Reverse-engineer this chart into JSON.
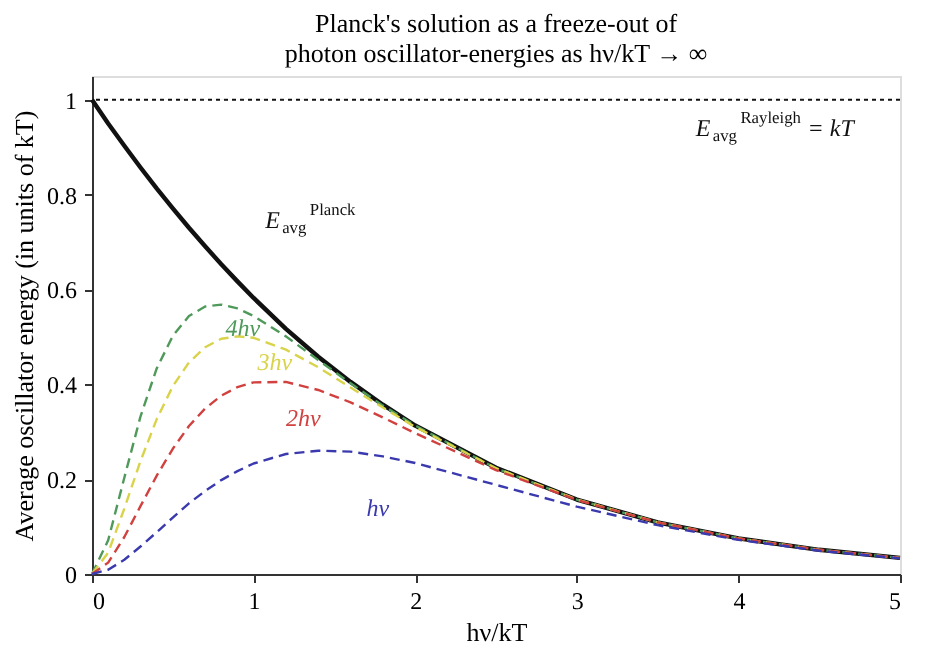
{
  "chart_data": {
    "type": "line",
    "title": [
      "Planck's solution as a freeze-out of",
      "photon oscillator-energies as hν/kT → ∞"
    ],
    "xlabel": "hν/kT",
    "ylabel": "Average oscillator energy (in units of kT)",
    "x": [
      0,
      0.1,
      0.2,
      0.3,
      0.4,
      0.5,
      0.6,
      0.7,
      0.8,
      0.9,
      1.0,
      1.2,
      1.4,
      1.6,
      1.8,
      2.0,
      2.5,
      3,
      3.5,
      4,
      4.5,
      5
    ],
    "series": [
      {
        "name": "E$_{avg}$$^{Planck}$",
        "color": "#111111",
        "line_style": "solid",
        "values": [
          1,
          0.95,
          0.903,
          0.857,
          0.813,
          0.771,
          0.73,
          0.691,
          0.653,
          0.617,
          0.582,
          0.517,
          0.458,
          0.405,
          0.357,
          0.313,
          0.224,
          0.157,
          0.109,
          0.075,
          0.051,
          0.034
        ]
      },
      {
        "name": "4hν",
        "color": "#4f9a5a",
        "line_style": "dashed",
        "values": [
          0,
          0.071,
          0.203,
          0.332,
          0.433,
          0.502,
          0.544,
          0.564,
          0.568,
          0.56,
          0.544,
          0.501,
          0.451,
          0.402,
          0.355,
          0.313,
          0.223,
          0.157,
          0.109,
          0.075,
          0.051,
          0.034
        ]
      },
      {
        "name": "3hν",
        "color": "#d9d34a",
        "line_style": "dashed",
        "values": [
          0,
          0.045,
          0.138,
          0.238,
          0.326,
          0.396,
          0.446,
          0.478,
          0.496,
          0.501,
          0.498,
          0.473,
          0.436,
          0.393,
          0.351,
          0.31,
          0.223,
          0.157,
          0.109,
          0.075,
          0.051,
          0.034
        ]
      },
      {
        "name": "2hν",
        "color": "#d0413f",
        "line_style": "dashed",
        "values": [
          0,
          0.024,
          0.078,
          0.143,
          0.207,
          0.264,
          0.312,
          0.349,
          0.376,
          0.394,
          0.404,
          0.405,
          0.388,
          0.362,
          0.33,
          0.297,
          0.219,
          0.156,
          0.109,
          0.075,
          0.051,
          0.034
        ]
      },
      {
        "name": "hν",
        "color": "#3a3aae",
        "line_style": "dashed",
        "values": [
          0,
          0.009,
          0.03,
          0.058,
          0.088,
          0.119,
          0.149,
          0.175,
          0.198,
          0.217,
          0.233,
          0.253,
          0.26,
          0.258,
          0.248,
          0.234,
          0.188,
          0.142,
          0.103,
          0.072,
          0.049,
          0.033
        ]
      }
    ],
    "xlim": [
      0,
      5
    ],
    "xticks": [
      0,
      1,
      2,
      3,
      4,
      5
    ],
    "ylim": [
      0,
      1.05
    ],
    "yticks": [
      0,
      0.2,
      0.4,
      0.6,
      0.8,
      1
    ],
    "ref_lines": [
      {
        "axis": "y",
        "value": 1,
        "label": "E$_{avg}$$^{Rayleigh}$ = kT",
        "color": "#111111",
        "line_style": "dotted"
      }
    ],
    "grid": false,
    "legend": false,
    "marker": "none"
  }
}
